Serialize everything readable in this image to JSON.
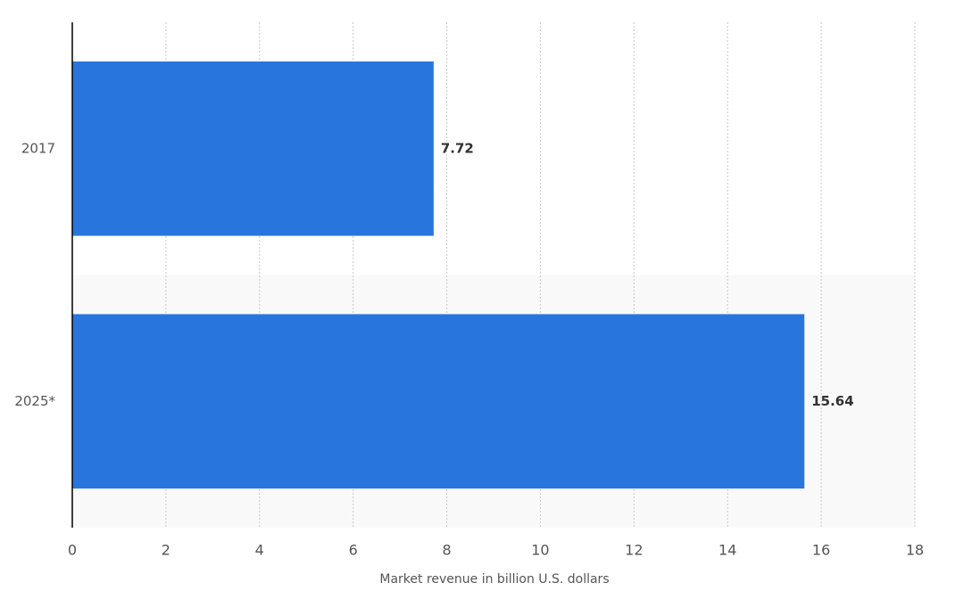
{
  "chart_data": {
    "type": "bar",
    "orientation": "horizontal",
    "categories": [
      "2017",
      "2025*"
    ],
    "values": [
      7.72,
      15.64
    ],
    "color": "#2876dd",
    "x_label": "Market revenue in billion U.S. dollars",
    "xlim": [
      0,
      18
    ],
    "xticks": [
      0,
      2,
      4,
      6,
      8,
      10,
      12,
      14,
      16,
      18
    ],
    "grid": true
  }
}
